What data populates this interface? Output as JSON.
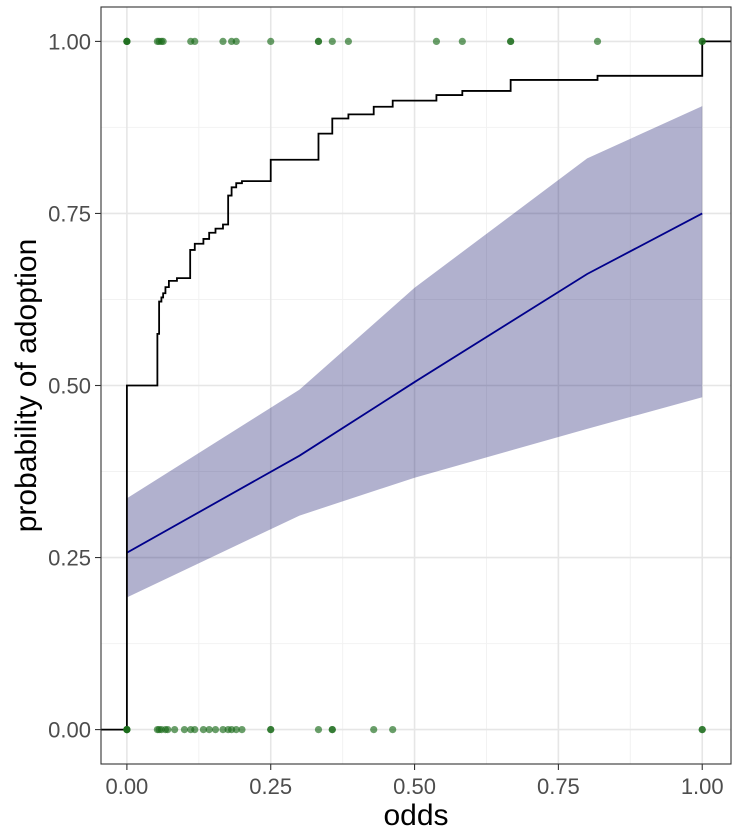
{
  "chart_data": {
    "type": "line",
    "xlabel": "odds",
    "ylabel": "probability of adoption",
    "xlim": [
      -0.045,
      1.05
    ],
    "ylim": [
      -0.05,
      1.05
    ],
    "x_ticks": [
      0.0,
      0.25,
      0.5,
      0.75,
      1.0
    ],
    "x_tick_labels": [
      "0.00",
      "0.25",
      "0.50",
      "0.75",
      "1.00"
    ],
    "y_ticks": [
      0.0,
      0.25,
      0.5,
      0.75,
      1.0
    ],
    "y_tick_labels": [
      "0.00",
      "0.25",
      "0.50",
      "0.75",
      "1.00"
    ],
    "grid": true,
    "series": [
      {
        "kind": "step",
        "color": "#000000",
        "points": [
          [
            -0.05,
            0.0
          ],
          [
            0.0,
            0.0
          ],
          [
            0.0,
            0.5
          ],
          [
            0.053,
            0.5
          ],
          [
            0.053,
            0.575
          ],
          [
            0.056,
            0.575
          ],
          [
            0.056,
            0.622
          ],
          [
            0.06,
            0.622
          ],
          [
            0.06,
            0.628
          ],
          [
            0.063,
            0.628
          ],
          [
            0.063,
            0.634
          ],
          [
            0.067,
            0.634
          ],
          [
            0.067,
            0.643
          ],
          [
            0.073,
            0.643
          ],
          [
            0.073,
            0.652
          ],
          [
            0.087,
            0.652
          ],
          [
            0.087,
            0.656
          ],
          [
            0.11,
            0.656
          ],
          [
            0.11,
            0.697
          ],
          [
            0.118,
            0.697
          ],
          [
            0.118,
            0.706
          ],
          [
            0.133,
            0.706
          ],
          [
            0.133,
            0.713
          ],
          [
            0.143,
            0.713
          ],
          [
            0.143,
            0.722
          ],
          [
            0.154,
            0.722
          ],
          [
            0.154,
            0.728
          ],
          [
            0.167,
            0.728
          ],
          [
            0.167,
            0.734
          ],
          [
            0.176,
            0.734
          ],
          [
            0.176,
            0.776
          ],
          [
            0.182,
            0.776
          ],
          [
            0.182,
            0.788
          ],
          [
            0.19,
            0.788
          ],
          [
            0.19,
            0.794
          ],
          [
            0.2,
            0.794
          ],
          [
            0.2,
            0.797
          ],
          [
            0.25,
            0.797
          ],
          [
            0.25,
            0.828
          ],
          [
            0.333,
            0.828
          ],
          [
            0.333,
            0.866
          ],
          [
            0.357,
            0.866
          ],
          [
            0.357,
            0.888
          ],
          [
            0.385,
            0.888
          ],
          [
            0.385,
            0.894
          ],
          [
            0.429,
            0.894
          ],
          [
            0.429,
            0.905
          ],
          [
            0.462,
            0.905
          ],
          [
            0.462,
            0.914
          ],
          [
            0.538,
            0.914
          ],
          [
            0.538,
            0.922
          ],
          [
            0.583,
            0.922
          ],
          [
            0.583,
            0.928
          ],
          [
            0.667,
            0.928
          ],
          [
            0.667,
            0.944
          ],
          [
            0.818,
            0.944
          ],
          [
            0.818,
            0.95
          ],
          [
            1.0,
            0.95
          ],
          [
            1.0,
            1.0
          ],
          [
            1.05,
            1.0
          ]
        ]
      },
      {
        "kind": "line",
        "color": "#00008b",
        "x": [
          0.0,
          0.3,
          0.5,
          0.8,
          1.0
        ],
        "values": [
          0.257,
          0.398,
          0.505,
          0.662,
          0.75
        ]
      },
      {
        "kind": "ribbon",
        "color": "#191970",
        "opacity": 0.34,
        "x": [
          0.0,
          0.3,
          0.5,
          0.8,
          1.0
        ],
        "lower": [
          0.192,
          0.311,
          0.366,
          0.437,
          0.483
        ],
        "upper": [
          0.336,
          0.494,
          0.642,
          0.83,
          0.906
        ]
      },
      {
        "kind": "points",
        "color": "#1a6b1a",
        "opacity": 0.65,
        "y": 1.0,
        "x": [
          0.0,
          0.0,
          0.0,
          0.053,
          0.056,
          0.06,
          0.063,
          0.111,
          0.118,
          0.167,
          0.182,
          0.19,
          0.25,
          0.333,
          0.333,
          0.357,
          0.385,
          0.538,
          0.583,
          0.667,
          0.667,
          0.818,
          1.0,
          1.0
        ]
      },
      {
        "kind": "points",
        "color": "#1a6b1a",
        "opacity": 0.65,
        "y": 0.0,
        "x": [
          0.0,
          0.0,
          0.0,
          0.0,
          0.053,
          0.056,
          0.06,
          0.067,
          0.071,
          0.083,
          0.1,
          0.111,
          0.118,
          0.133,
          0.143,
          0.154,
          0.167,
          0.176,
          0.182,
          0.19,
          0.2,
          0.25,
          0.25,
          0.333,
          0.357,
          0.357,
          0.429,
          0.462,
          1.0,
          1.0
        ]
      }
    ]
  }
}
